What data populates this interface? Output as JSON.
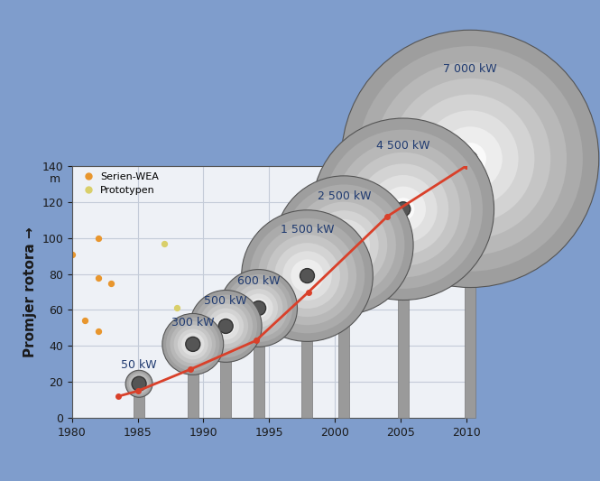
{
  "chart_data": {
    "type": "scatter",
    "ylabel": "Promjer rotora →",
    "y_unit": "m",
    "xlim": [
      1980,
      2010
    ],
    "xticks": [
      1980,
      1985,
      1990,
      1995,
      2000,
      2005,
      2010
    ],
    "ylim": [
      0,
      140
    ],
    "yticks": [
      0,
      20,
      40,
      60,
      80,
      100,
      120,
      140
    ],
    "grid": true,
    "legend": "upper left",
    "series": [
      {
        "name": "Serien-WEA",
        "color": "#e8962e",
        "marker": "o",
        "x": [
          1980,
          1982,
          1982,
          1983,
          1981,
          1982
        ],
        "values": [
          91,
          100,
          78,
          75,
          54,
          48
        ]
      },
      {
        "name": "Prototypen",
        "color": "#d9cf6a",
        "marker": "o",
        "x": [
          1987,
          1988,
          1989,
          1988
        ],
        "values": [
          97,
          61,
          50,
          46
        ]
      }
    ],
    "trend": {
      "color": "#d9402a",
      "marker": "o",
      "x": [
        1983.5,
        1985,
        1989,
        1994,
        1998,
        2004,
        2010
      ],
      "values": [
        12,
        15,
        27,
        43,
        70,
        112,
        140
      ]
    },
    "turbines": [
      {
        "label": "50 kW",
        "x": 1985.1,
        "y": 19,
        "diameter": 15
      },
      {
        "label": "300 kW",
        "x": 1989.2,
        "y": 41,
        "diameter": 34
      },
      {
        "label": "500 kW",
        "x": 1991.7,
        "y": 51,
        "diameter": 40
      },
      {
        "label": "600 kW",
        "x": 1994.2,
        "y": 61,
        "diameter": 43
      },
      {
        "label": "1 500 kW",
        "x": 1997.9,
        "y": 79,
        "diameter": 73
      },
      {
        "label": "2 500 kW",
        "x": 2000.7,
        "y": 96,
        "diameter": 77
      },
      {
        "label": "4 500 kW",
        "x": 2005.2,
        "y": 116,
        "diameter": 101
      },
      {
        "label": "7 000 kW",
        "x": 2010.3,
        "y": 144,
        "diameter": 143
      }
    ]
  }
}
